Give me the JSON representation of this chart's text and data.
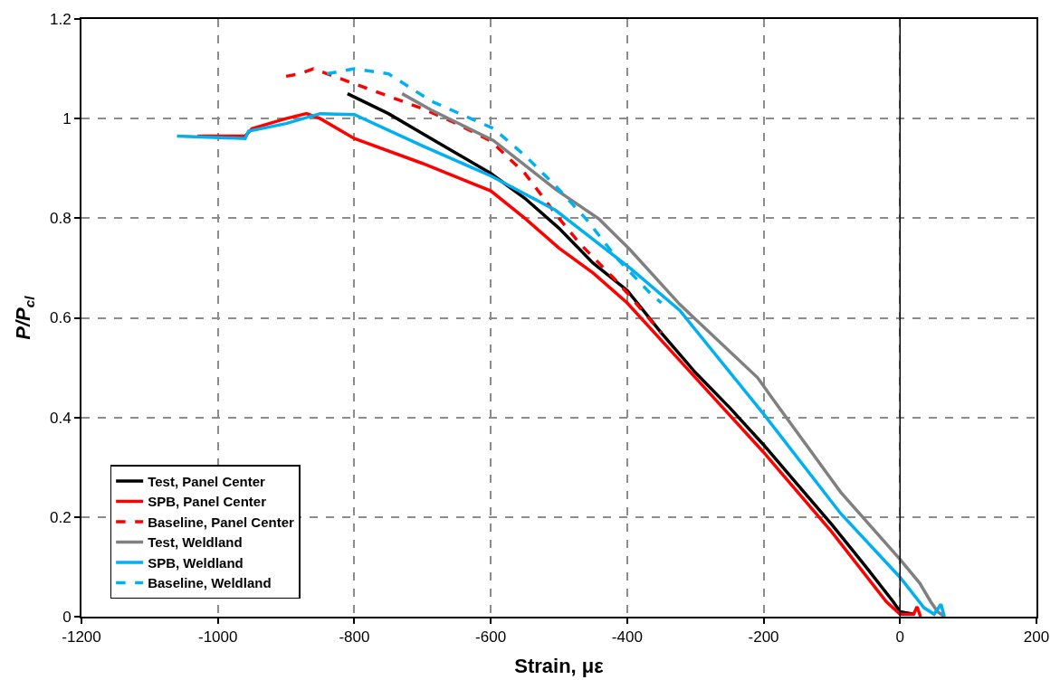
{
  "chart_data": {
    "type": "line",
    "xlabel": "Strain, με",
    "ylabel": "P/P$_{cl}$",
    "xlim": [
      -1200,
      200
    ],
    "xticks": [
      -1200,
      -1000,
      -800,
      -600,
      -400,
      -200,
      0,
      200
    ],
    "ylim": [
      0,
      1.2
    ],
    "yticks": [
      0,
      0.2,
      0.4,
      0.6,
      0.8,
      1,
      1.2
    ],
    "grid": true,
    "legend": "bottom left",
    "marker": "none",
    "ref_lines": [
      {
        "axis": "x",
        "value": 0,
        "color": "#000000",
        "line_style": "solid"
      }
    ],
    "series": [
      {
        "name": "Test, Panel Center",
        "color": "#000000",
        "line_style": "solid",
        "x": [
          -810,
          -750,
          -700,
          -650,
          -600,
          -550,
          -500,
          -450,
          -400,
          -350,
          -300,
          -250,
          -200,
          -150,
          -100,
          -50,
          -10,
          0,
          20
        ],
        "values": [
          1.05,
          1.01,
          0.97,
          0.93,
          0.89,
          0.84,
          0.78,
          0.71,
          0.655,
          0.57,
          0.49,
          0.42,
          0.345,
          0.265,
          0.185,
          0.1,
          0.03,
          0.01,
          0.005
        ]
      },
      {
        "name": "SPB, Panel Center",
        "color": "#ff0000",
        "line_style": "solid",
        "x": [
          -1030,
          -960,
          -950,
          -900,
          -870,
          -850,
          -800,
          -700,
          -600,
          -550,
          -500,
          -450,
          -400,
          -300,
          -200,
          -100,
          -20,
          0,
          20,
          25,
          30
        ],
        "values": [
          0.965,
          0.965,
          0.98,
          1.0,
          1.01,
          1.0,
          0.96,
          0.91,
          0.855,
          0.8,
          0.74,
          0.69,
          0.63,
          0.48,
          0.33,
          0.17,
          0.03,
          0.005,
          0.005,
          0.02,
          0
        ]
      },
      {
        "name": "Baseline, Panel Center",
        "color": "#ff0000",
        "line_style": "dashed",
        "x": [
          -900,
          -880,
          -860,
          -840,
          -800,
          -700,
          -650,
          -600,
          -550,
          -500,
          -470,
          -420,
          -400,
          -350
        ],
        "values": [
          1.085,
          1.09,
          1.1,
          1.09,
          1.07,
          1.02,
          0.99,
          0.955,
          0.89,
          0.8,
          0.75,
          0.68,
          0.65,
          0.57
        ]
      },
      {
        "name": "Test, Weldland",
        "color": "#808080",
        "line_style": "solid",
        "x": [
          -730,
          -687,
          -596,
          -505,
          -441,
          -396,
          -323,
          -209,
          -187,
          -87,
          0,
          29,
          45,
          55,
          65
        ],
        "values": [
          1.05,
          1.017,
          0.956,
          0.858,
          0.798,
          0.737,
          0.627,
          0.48,
          0.438,
          0.25,
          0.115,
          0.067,
          0.03,
          0.01,
          0
        ]
      },
      {
        "name": "SPB, Weldland",
        "color": "#00b0f0",
        "line_style": "solid",
        "x": [
          -1060,
          -960,
          -955,
          -900,
          -850,
          -800,
          -700,
          -600,
          -505,
          -396,
          -323,
          -200,
          -87,
          0,
          35,
          50,
          60,
          65
        ],
        "values": [
          0.965,
          0.96,
          0.975,
          0.99,
          1.01,
          1.008,
          0.945,
          0.885,
          0.816,
          0.7,
          0.615,
          0.407,
          0.207,
          0.079,
          0.018,
          0.005,
          0.025,
          0
        ]
      },
      {
        "name": "Baseline, Weldland",
        "color": "#00b0f0",
        "line_style": "dashed",
        "x": [
          -840,
          -800,
          -750,
          -687,
          -596,
          -550,
          -505,
          -460,
          -414,
          -368,
          -350
        ],
        "values": [
          1.09,
          1.1,
          1.09,
          1.035,
          0.98,
          0.926,
          0.865,
          0.798,
          0.718,
          0.652,
          0.63
        ]
      }
    ]
  }
}
